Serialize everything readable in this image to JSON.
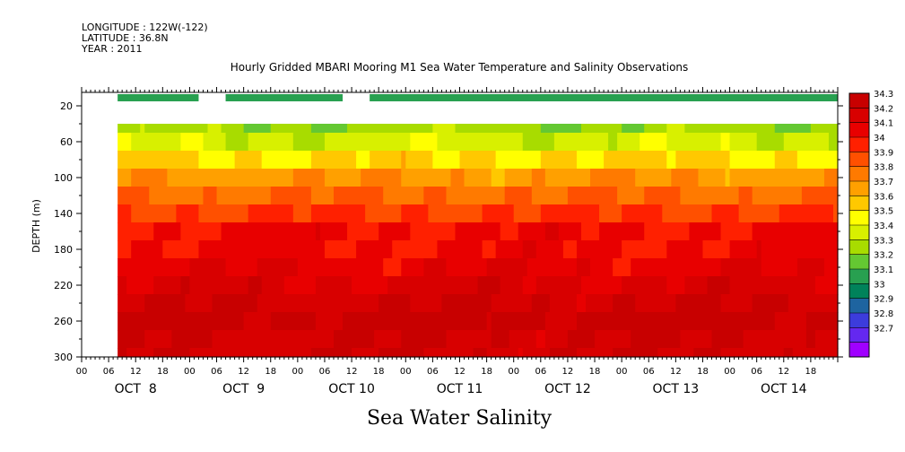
{
  "header": {
    "longitude": "LONGITUDE : 122W(-122)",
    "latitude": "LATITUDE : 36.8N",
    "year": "YEAR : 2011"
  },
  "chart_data": {
    "type": "heatmap",
    "title": "Hourly Gridded MBARI Mooring M1 Sea Water Temperature and Salinity Observations",
    "xlabel": "Sea Water Salinity",
    "ylabel": "DEPTH (m)",
    "y_ticks": [
      20,
      60,
      100,
      140,
      180,
      220,
      260,
      300
    ],
    "ylim": [
      300,
      5
    ],
    "x_hour_labels": [
      "00",
      "06",
      "12",
      "18",
      "00",
      "06",
      "12",
      "18",
      "00",
      "06",
      "12",
      "18",
      "00",
      "06",
      "12",
      "18",
      "00",
      "06",
      "12",
      "18",
      "00",
      "06",
      "12",
      "18",
      "00",
      "06",
      "12",
      "18"
    ],
    "x_day_labels": [
      "OCT  8",
      "OCT  9",
      "OCT 10",
      "OCT 11",
      "OCT 12",
      "OCT 13",
      "OCT 14"
    ],
    "colorbar_ticks": [
      "34.3",
      "34.2",
      "34.1",
      "34",
      "33.9",
      "33.8",
      "33.7",
      "33.6",
      "33.5",
      "33.4",
      "33.3",
      "33.2",
      "33.1",
      "33",
      "32.9",
      "32.8",
      "32.7"
    ],
    "colorbar_colors": [
      "#c80000",
      "#d80000",
      "#e80000",
      "#ff2000",
      "#ff5000",
      "#ff7a00",
      "#ffa000",
      "#ffc800",
      "#ffff00",
      "#d8f000",
      "#a8dc00",
      "#64c832",
      "#28a050",
      "#00825a",
      "#1e64a0",
      "#3c3cdc",
      "#6428f0",
      "#a000ff"
    ],
    "near_surface_layer": {
      "depth": 10,
      "salinity": 33.2,
      "segments": [
        [
          8,
          26
        ],
        [
          32,
          58
        ],
        [
          64,
          168
        ]
      ]
    },
    "salinity_profile": {
      "depths": [
        40,
        60,
        80,
        100,
        120,
        140,
        160,
        180,
        200,
        220,
        240,
        260,
        280,
        300
      ],
      "salinity": [
        33.35,
        33.45,
        33.6,
        33.75,
        33.85,
        33.95,
        34.05,
        34.05,
        34.1,
        34.15,
        34.2,
        34.25,
        34.2,
        34.2
      ]
    },
    "data_start_hour": 8,
    "data_end_hour": 168
  }
}
